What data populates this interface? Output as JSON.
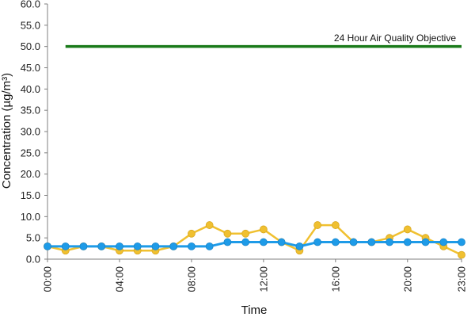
{
  "chart_data": {
    "type": "line",
    "title": "",
    "xlabel": "Time",
    "ylabel": "Concentration (µg/m³)",
    "ylim": [
      0,
      60
    ],
    "y_ticks": [
      "0.0",
      "5.0",
      "10.0",
      "15.0",
      "20.0",
      "25.0",
      "30.0",
      "35.0",
      "40.0",
      "45.0",
      "50.0",
      "55.0",
      "60.0"
    ],
    "x": [
      "00:00",
      "01:00",
      "02:00",
      "03:00",
      "04:00",
      "05:00",
      "06:00",
      "07:00",
      "08:00",
      "09:00",
      "10:00",
      "11:00",
      "12:00",
      "13:00",
      "14:00",
      "15:00",
      "16:00",
      "17:00",
      "18:00",
      "19:00",
      "20:00",
      "21:00",
      "22:00",
      "23:00"
    ],
    "x_tick_labels": [
      "00:00",
      "04:00",
      "08:00",
      "12:00",
      "16:00",
      "20:00",
      "23:00"
    ],
    "grid": false,
    "legend": "none",
    "series": [
      {
        "color": "#f0c030",
        "values": [
          3,
          2,
          3,
          3,
          2,
          2,
          2,
          3,
          6,
          8,
          6,
          6,
          7,
          4,
          2,
          8,
          8,
          4,
          4,
          5,
          7,
          5,
          3,
          1
        ]
      },
      {
        "color": "#1e9be8",
        "values": [
          3,
          3,
          3,
          3,
          3,
          3,
          3,
          3,
          3,
          3,
          4,
          4,
          4,
          4,
          3,
          4,
          4,
          4,
          4,
          4,
          4,
          4,
          4,
          4
        ]
      }
    ],
    "objective": {
      "label": "24 Hour Air Quality Objective",
      "value": 50,
      "from": "01:00",
      "to": "23:00",
      "color": "#1a7a1a"
    }
  }
}
